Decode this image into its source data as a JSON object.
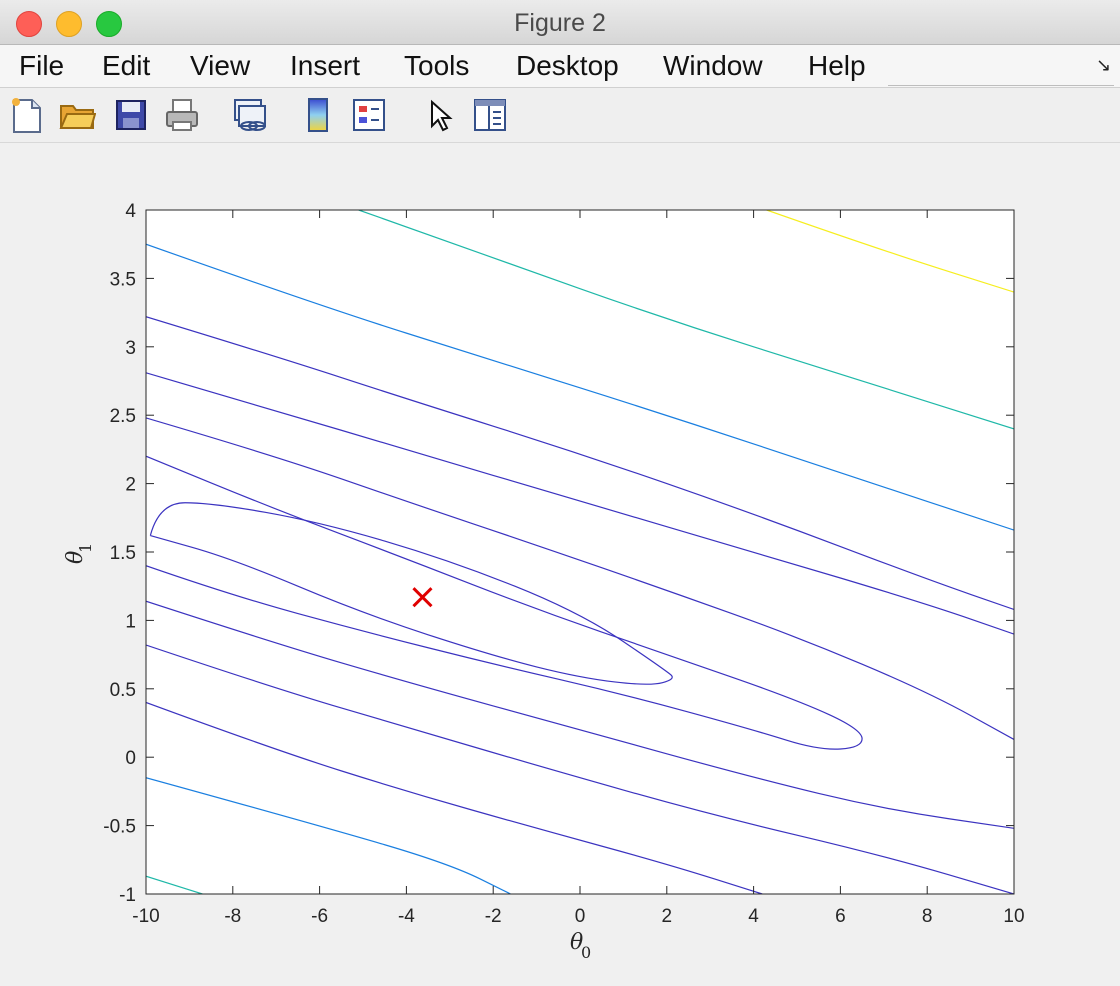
{
  "window": {
    "title": "Figure 2"
  },
  "menu": [
    "File",
    "Edit",
    "View",
    "Insert",
    "Tools",
    "Desktop",
    "Window",
    "Help"
  ],
  "toolbar": {
    "icons": [
      "new-figure-icon",
      "open-file-icon",
      "save-icon",
      "print-icon",
      "link-plot-icon",
      "insert-colorbar-icon",
      "insert-legend-icon",
      "edit-plot-pointer-icon",
      "property-inspector-icon"
    ]
  },
  "colors": {
    "level1": "#3b33c0",
    "level2": "#1a7fe0",
    "level3": "#1fb8a8",
    "level4": "#f6ee1e",
    "marker": "#e00000"
  },
  "chart_data": {
    "type": "contour",
    "xlabel_symbol": "θ",
    "xlabel_sub": "0",
    "ylabel_symbol": "θ",
    "ylabel_sub": "1",
    "xlim": [
      -10,
      10
    ],
    "ylim": [
      -1,
      4
    ],
    "xticks": [
      "-10",
      "-8",
      "-6",
      "-4",
      "-2",
      "0",
      "2",
      "4",
      "6",
      "8",
      "10"
    ],
    "yticks": [
      "-1",
      "-0.5",
      "0",
      "0.5",
      "1",
      "1.5",
      "2",
      "2.5",
      "3",
      "3.5",
      "4"
    ],
    "minimum_marker": {
      "x": -3.63,
      "y": 1.17,
      "symbol": "x"
    }
  }
}
